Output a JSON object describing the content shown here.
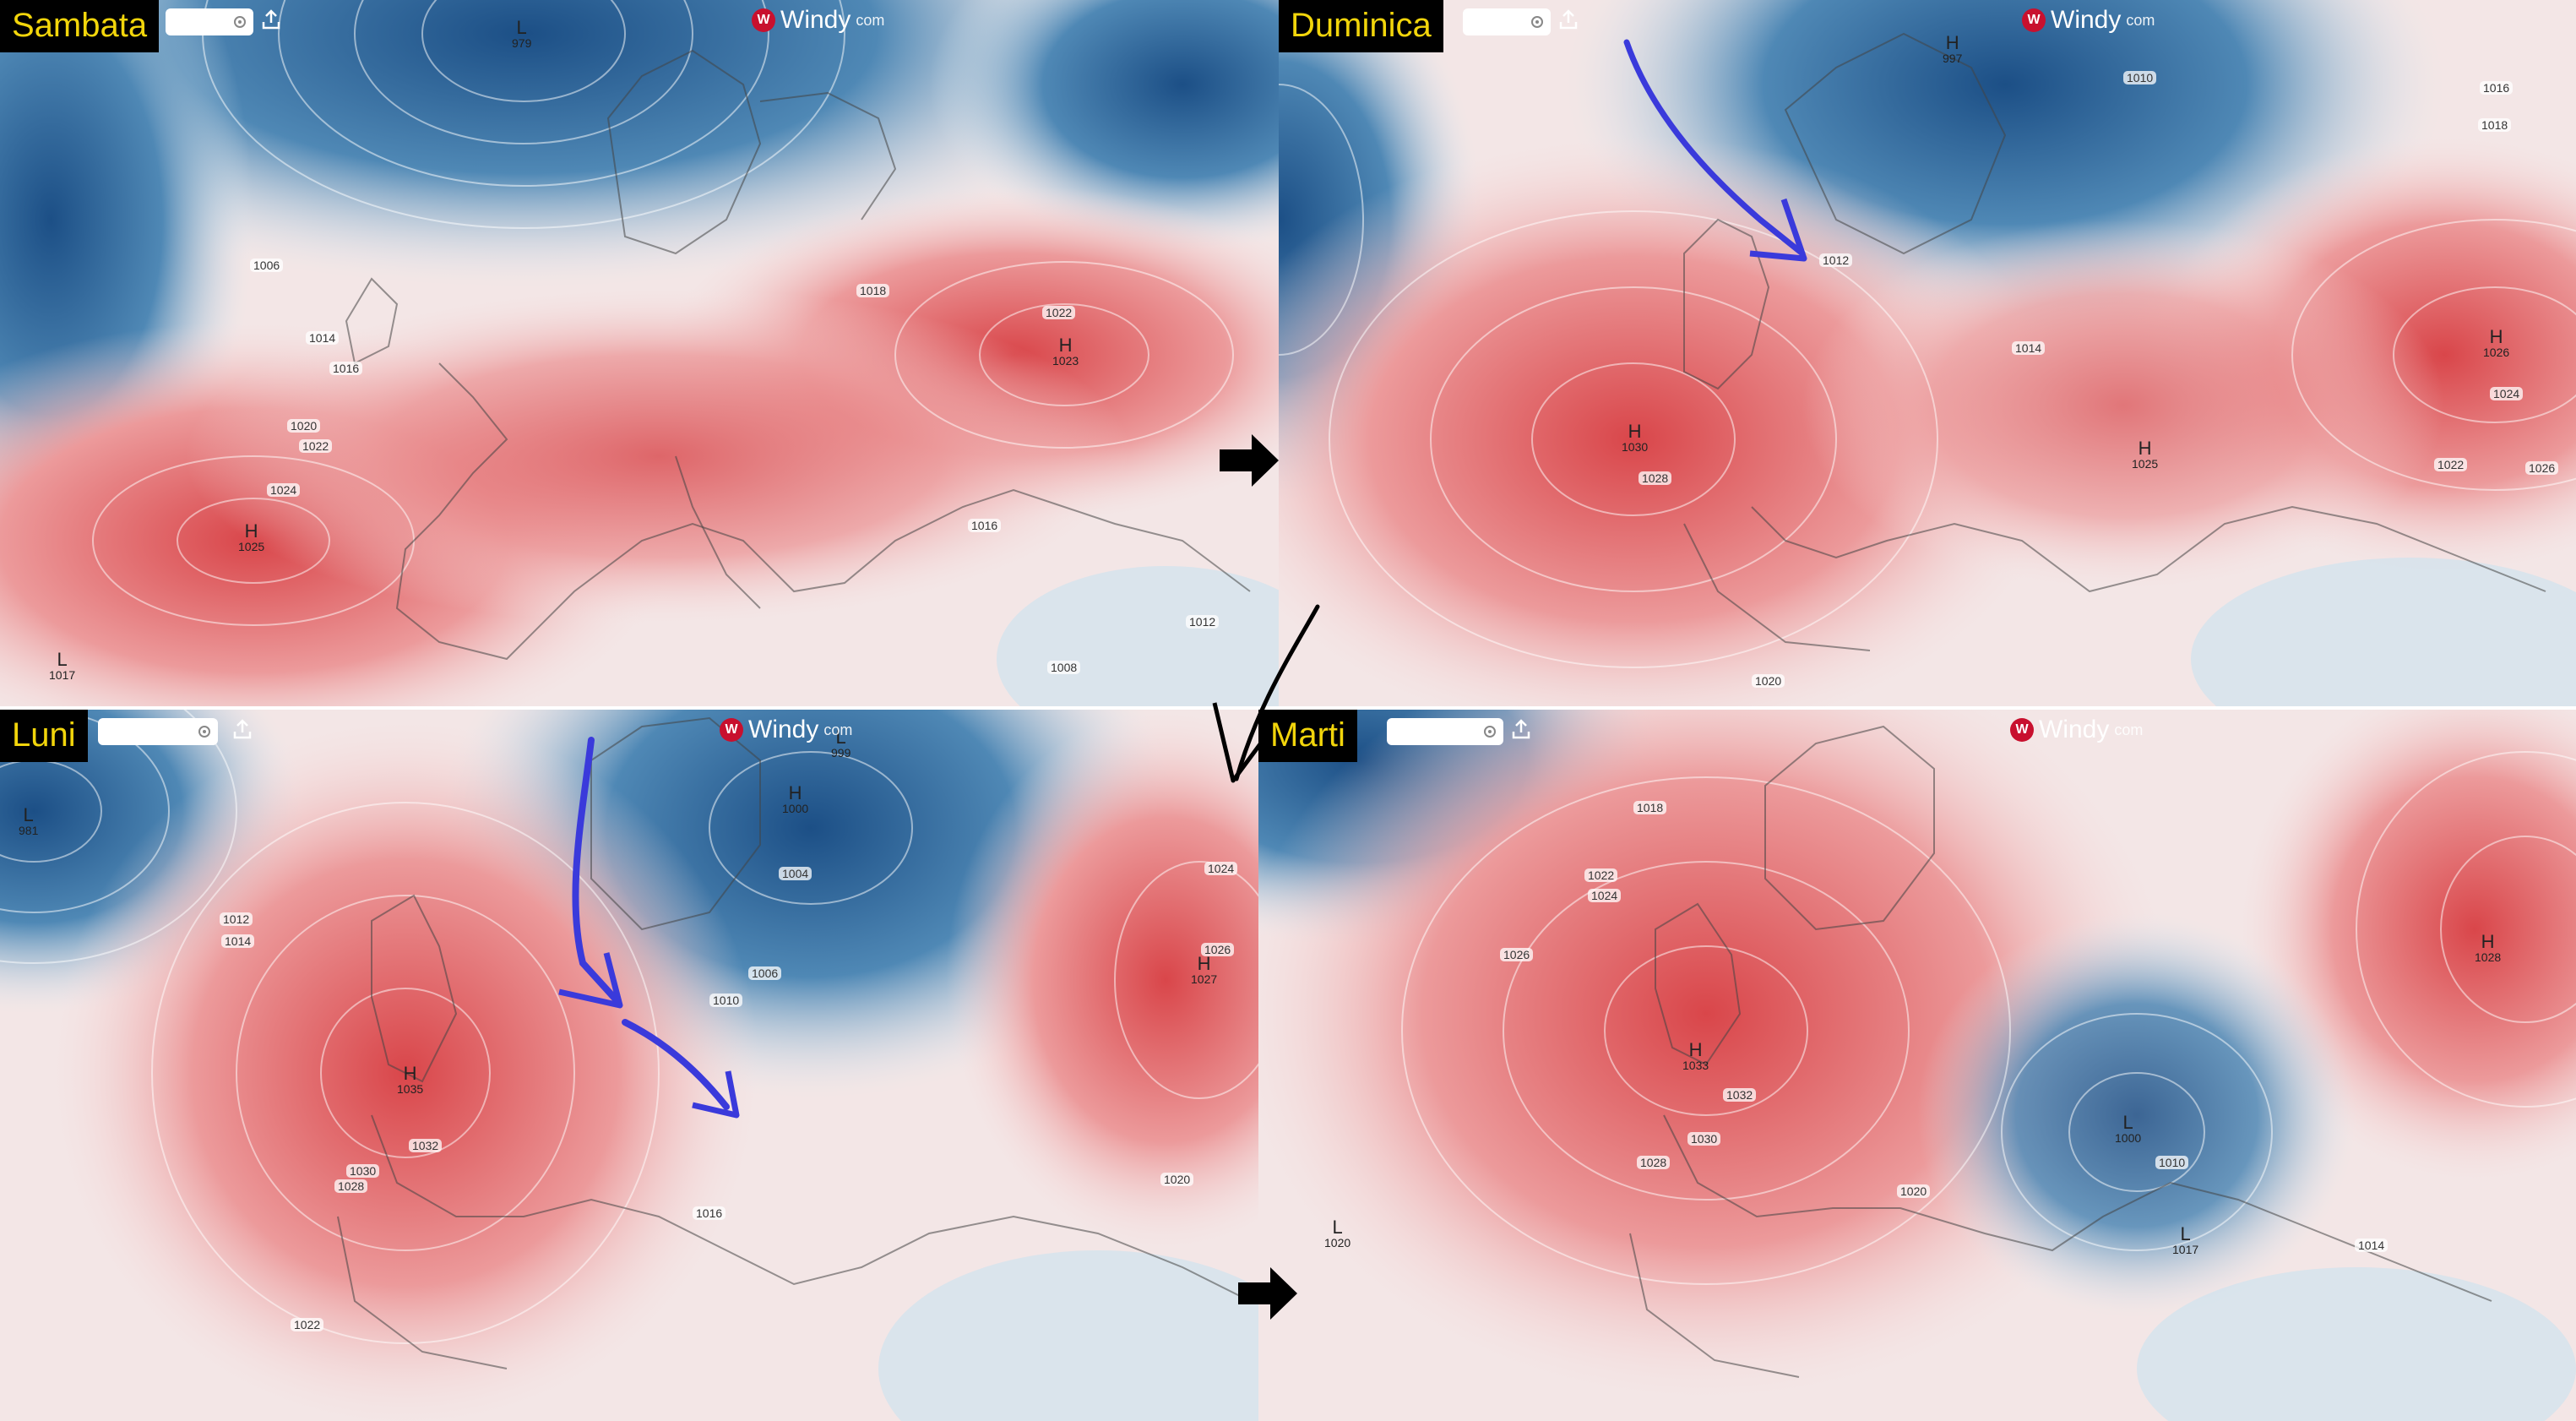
{
  "panels": [
    {
      "id": "sambata",
      "label": "Sambata"
    },
    {
      "id": "duminica",
      "label": "Duminica"
    },
    {
      "id": "luni",
      "label": "Luni"
    },
    {
      "id": "marti",
      "label": "Marti"
    }
  ],
  "logo": {
    "text": "Windy",
    "suffix": "com",
    "mark": "W"
  },
  "pressure": {
    "sambata": {
      "centers": [
        {
          "type": "L",
          "value": "979"
        },
        {
          "type": "H",
          "value": "1025"
        },
        {
          "type": "H",
          "value": "1023"
        },
        {
          "type": "L",
          "value": "1017"
        }
      ],
      "isobars": [
        "1006",
        "1014",
        "1016",
        "1018",
        "1020",
        "1022",
        "1024",
        "1022",
        "1016",
        "1012",
        "1008"
      ]
    },
    "duminica": {
      "centers": [
        {
          "type": "H",
          "value": "997"
        },
        {
          "type": "H",
          "value": "1030"
        },
        {
          "type": "H",
          "value": "1026"
        },
        {
          "type": "H",
          "value": "1025"
        }
      ],
      "isobars": [
        "1010",
        "1012",
        "1014",
        "1016",
        "1018",
        "1022",
        "1024",
        "1026",
        "1028",
        "1020"
      ]
    },
    "luni": {
      "centers": [
        {
          "type": "L",
          "value": "981"
        },
        {
          "type": "L",
          "value": "999"
        },
        {
          "type": "H",
          "value": "1000"
        },
        {
          "type": "H",
          "value": "1035"
        },
        {
          "type": "H",
          "value": "1027"
        }
      ],
      "isobars": [
        "1004",
        "1006",
        "1010",
        "1012",
        "1014",
        "1016",
        "1020",
        "1022",
        "1024",
        "1026",
        "1028",
        "1030",
        "1032"
      ]
    },
    "marti": {
      "centers": [
        {
          "type": "H",
          "value": "1033"
        },
        {
          "type": "H",
          "value": "1028"
        },
        {
          "type": "L",
          "value": "1000"
        },
        {
          "type": "L",
          "value": "1020"
        },
        {
          "type": "L",
          "value": "1017"
        }
      ],
      "isobars": [
        "1018",
        "1020",
        "1022",
        "1024",
        "1026",
        "1028",
        "1030",
        "1032",
        "1014",
        "1010"
      ]
    }
  },
  "colors": {
    "high": "#d9464a",
    "low": "#2f6fa3",
    "neutral": "#f4f1f1",
    "arrow_blue": "#3a3adb",
    "arrow_black": "#000000",
    "label_bg": "#000000",
    "label_text": "#f2d50b"
  }
}
